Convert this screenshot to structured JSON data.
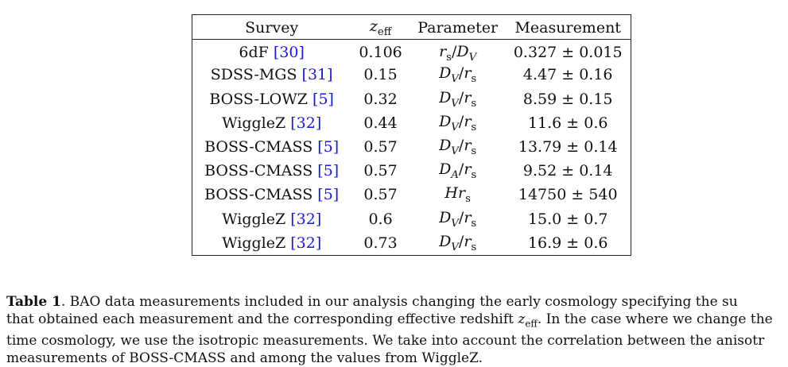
{
  "table": {
    "headers": [
      "Survey",
      "z_eff",
      "Parameter",
      "Measurement"
    ],
    "rows": [
      {
        "survey": "6dF",
        "cite": "30",
        "z": "0.106",
        "param": "r_s/D_V",
        "meas": "0.327 ± 0.015"
      },
      {
        "survey": "SDSS-MGS",
        "cite": "31",
        "z": "0.15",
        "param": "D_V/r_s",
        "meas": "4.47 ± 0.16"
      },
      {
        "survey": "BOSS-LOWZ",
        "cite": "5",
        "z": "0.32",
        "param": "D_V/r_s",
        "meas": "8.59 ± 0.15"
      },
      {
        "survey": "WiggleZ",
        "cite": "32",
        "z": "0.44",
        "param": "D_V/r_s",
        "meas": "11.6 ± 0.6"
      },
      {
        "survey": "BOSS-CMASS",
        "cite": "5",
        "z": "0.57",
        "param": "D_V/r_s",
        "meas": "13.79 ± 0.14"
      },
      {
        "survey": "BOSS-CMASS",
        "cite": "5",
        "z": "0.57",
        "param": "D_A/r_s",
        "meas": "9.52 ± 0.14"
      },
      {
        "survey": "BOSS-CMASS",
        "cite": "5",
        "z": "0.57",
        "param": "H r_s",
        "meas": "14750 ± 540"
      },
      {
        "survey": "WiggleZ",
        "cite": "32",
        "z": "0.6",
        "param": "D_V/r_s",
        "meas": "15.0 ± 0.7"
      },
      {
        "survey": "WiggleZ",
        "cite": "32",
        "z": "0.73",
        "param": "D_V/r_s",
        "meas": "16.9 ± 0.6"
      }
    ]
  },
  "caption": {
    "label": "Table 1",
    "lines": [
      ". BAO data measurements included in our analysis changing the early cosmology specifying the su",
      "that obtained each measurement and the corresponding effective redshift z_eff. In the case where we change the",
      "time cosmology, we use the isotropic measurements. We take into account the correlation between the anisotr",
      "measurements of BOSS-CMASS and among the values from WiggleZ."
    ]
  }
}
